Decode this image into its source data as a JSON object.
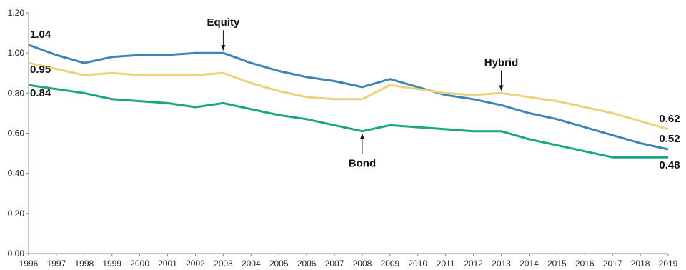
{
  "chart_data": {
    "type": "line",
    "title": "",
    "xlabel": "",
    "ylabel": "",
    "ylim": [
      0,
      1.2
    ],
    "yticks": [
      "0.00",
      "0.20",
      "0.40",
      "0.60",
      "0.80",
      "1.00",
      "1.20"
    ],
    "grid": false,
    "x": [
      1996,
      1997,
      1998,
      1999,
      2000,
      2001,
      2002,
      2003,
      2004,
      2005,
      2006,
      2007,
      2008,
      2009,
      2010,
      2011,
      2012,
      2013,
      2014,
      2015,
      2016,
      2017,
      2018,
      2019
    ],
    "series": [
      {
        "name": "Equity",
        "color": "#3d85b8",
        "values": [
          1.04,
          0.99,
          0.95,
          0.98,
          0.99,
          0.99,
          1.0,
          1.0,
          0.95,
          0.91,
          0.88,
          0.86,
          0.83,
          0.87,
          0.83,
          0.79,
          0.77,
          0.74,
          0.7,
          0.67,
          0.63,
          0.59,
          0.55,
          0.52
        ]
      },
      {
        "name": "Hybrid",
        "color": "#ecd37a",
        "values": [
          0.95,
          0.92,
          0.89,
          0.9,
          0.89,
          0.89,
          0.89,
          0.9,
          0.85,
          0.81,
          0.78,
          0.77,
          0.77,
          0.84,
          0.82,
          0.8,
          0.79,
          0.8,
          0.78,
          0.76,
          0.73,
          0.7,
          0.66,
          0.62
        ]
      },
      {
        "name": "Bond",
        "color": "#1aa586",
        "values": [
          0.84,
          0.82,
          0.8,
          0.77,
          0.76,
          0.75,
          0.73,
          0.75,
          0.72,
          0.69,
          0.67,
          0.64,
          0.61,
          0.64,
          0.63,
          0.62,
          0.61,
          0.61,
          0.57,
          0.54,
          0.51,
          0.48,
          0.48,
          0.48
        ]
      }
    ],
    "start_labels": [
      "1.04",
      "0.95",
      "0.84"
    ],
    "end_labels": [
      "0.62",
      "0.52",
      "0.48"
    ],
    "annotations": [
      {
        "text": "Equity",
        "series": "Equity",
        "year": 2003
      },
      {
        "text": "Hybrid",
        "series": "Hybrid",
        "year": 2013
      },
      {
        "text": "Bond",
        "series": "Bond",
        "year": 2008
      }
    ]
  }
}
